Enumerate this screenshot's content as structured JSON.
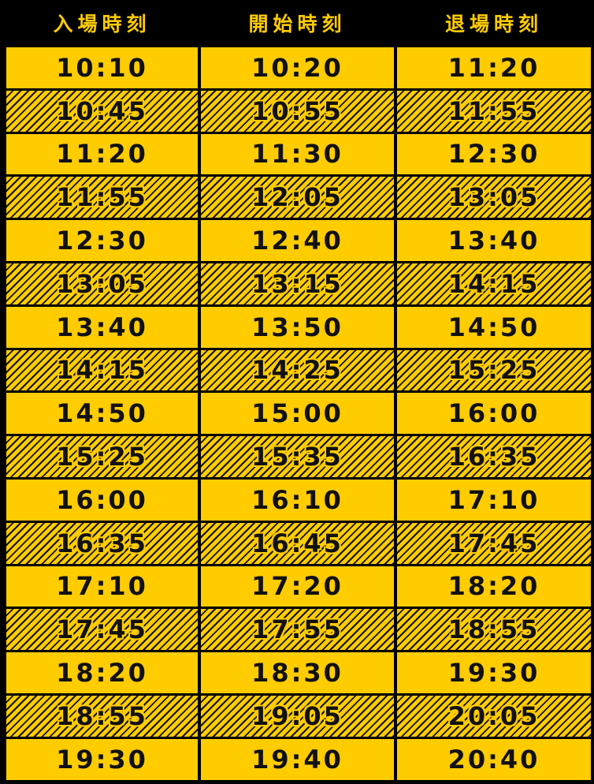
{
  "colors": {
    "background": "#000000",
    "cell": "#ffcc00",
    "text": "#111111"
  },
  "headers": [
    "入場時刻",
    "開始時刻",
    "退場時刻"
  ],
  "rows": [
    [
      "10:10",
      "10:20",
      "11:20"
    ],
    [
      "10:45",
      "10:55",
      "11:55"
    ],
    [
      "11:20",
      "11:30",
      "12:30"
    ],
    [
      "11:55",
      "12:05",
      "13:05"
    ],
    [
      "12:30",
      "12:40",
      "13:40"
    ],
    [
      "13:05",
      "13:15",
      "14:15"
    ],
    [
      "13:40",
      "13:50",
      "14:50"
    ],
    [
      "14:15",
      "14:25",
      "15:25"
    ],
    [
      "14:50",
      "15:00",
      "16:00"
    ],
    [
      "15:25",
      "15:35",
      "16:35"
    ],
    [
      "16:00",
      "16:10",
      "17:10"
    ],
    [
      "16:35",
      "16:45",
      "17:45"
    ],
    [
      "17:10",
      "17:20",
      "18:20"
    ],
    [
      "17:45",
      "17:55",
      "18:55"
    ],
    [
      "18:20",
      "18:30",
      "19:30"
    ],
    [
      "18:55",
      "19:05",
      "20:05"
    ],
    [
      "19:30",
      "19:40",
      "20:40"
    ]
  ]
}
